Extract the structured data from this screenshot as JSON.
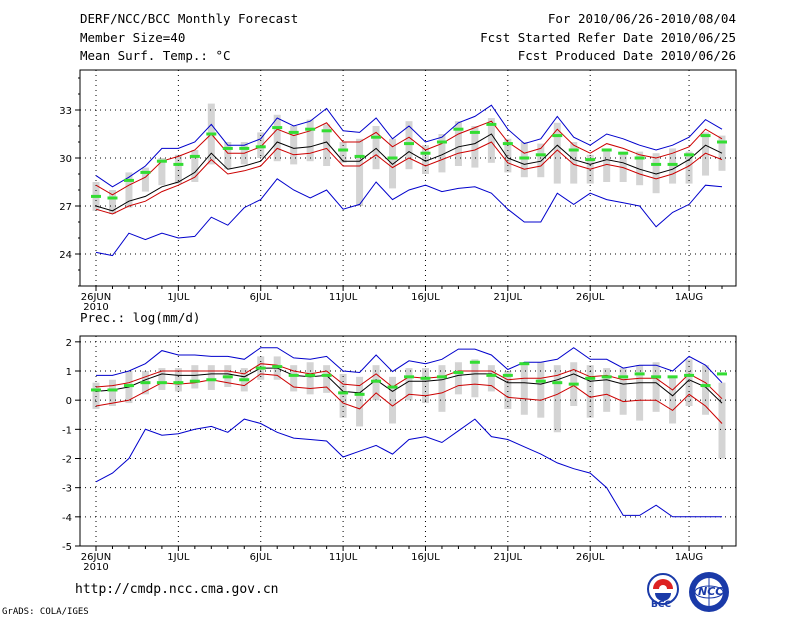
{
  "header": {
    "title": "DERF/NCC/BCC Monthly Forecast",
    "member": "Member Size=40",
    "variable": "Mean Surf. Temp.: °C",
    "period": "For 2010/06/26-2010/08/04",
    "started": "Fcst Started Refer Date 2010/06/25",
    "produced": "Fcst Produced Date 2010/06/26"
  },
  "footer": {
    "url": "http://cmdp.ncc.cma.gov.cn",
    "grads": "GrADS: COLA/IGES",
    "logo_bcc": "BCC",
    "logo_ncc": "NCC"
  },
  "colors": {
    "gray_bar": "#d4d4d4",
    "green": "#33dd33",
    "blue": "#0000cc",
    "red": "#cc0000",
    "black": "#000000"
  },
  "chart_data": [
    {
      "type": "line",
      "title": "Mean Surf. Temp.: °C",
      "x_tick_labels": [
        "26JUN",
        "1JUL",
        "6JUL",
        "11JUL",
        "16JUL",
        "21JUL",
        "26JUL",
        "1AUG"
      ],
      "x_tick_days": [
        0,
        5,
        10,
        15,
        20,
        25,
        30,
        36
      ],
      "year_label": "2010",
      "ylim": [
        22,
        35.5
      ],
      "yticks": [
        24,
        27,
        30,
        33
      ],
      "series": [
        {
          "name": "max",
          "color": "blue",
          "values": [
            28.9,
            28.2,
            28.8,
            29.5,
            30.6,
            30.6,
            31.0,
            32.1,
            30.8,
            30.8,
            31.2,
            32.5,
            32.0,
            32.3,
            33.1,
            31.7,
            31.6,
            32.5,
            31.2,
            32.0,
            31.0,
            31.3,
            32.2,
            32.6,
            33.3,
            31.8,
            30.9,
            31.2,
            32.6,
            31.3,
            30.8,
            31.5,
            31.2,
            30.8,
            30.5,
            30.8,
            31.3,
            32.4,
            31.8
          ]
        },
        {
          "name": "upper",
          "color": "red",
          "values": [
            28.3,
            27.7,
            28.3,
            28.8,
            29.8,
            30.1,
            30.5,
            31.5,
            30.3,
            30.3,
            30.7,
            31.8,
            31.4,
            31.7,
            32.2,
            31.0,
            31.0,
            31.6,
            30.7,
            31.3,
            30.5,
            30.9,
            31.5,
            31.9,
            32.3,
            31.0,
            30.3,
            30.6,
            31.8,
            30.8,
            30.3,
            30.9,
            30.6,
            30.2,
            30.0,
            30.3,
            30.7,
            31.8,
            31.2
          ]
        },
        {
          "name": "mean",
          "color": "black",
          "values": [
            27.0,
            26.7,
            27.3,
            27.6,
            28.2,
            28.5,
            29.1,
            30.3,
            29.3,
            29.5,
            29.8,
            31.0,
            30.6,
            30.7,
            31.0,
            29.8,
            29.8,
            30.6,
            29.6,
            30.4,
            29.8,
            30.2,
            30.7,
            30.9,
            31.5,
            30.0,
            29.6,
            29.8,
            30.8,
            29.9,
            29.6,
            29.9,
            29.7,
            29.3,
            29.0,
            29.3,
            29.9,
            30.8,
            30.3
          ]
        },
        {
          "name": "lower",
          "color": "red",
          "values": [
            26.8,
            26.5,
            27.0,
            27.3,
            27.9,
            28.3,
            28.8,
            29.9,
            29.0,
            29.2,
            29.5,
            30.6,
            30.2,
            30.3,
            30.6,
            29.5,
            29.5,
            30.2,
            29.4,
            30.0,
            29.5,
            29.9,
            30.3,
            30.5,
            31.0,
            29.7,
            29.3,
            29.5,
            30.5,
            29.6,
            29.3,
            29.6,
            29.4,
            29.0,
            28.7,
            29.0,
            29.5,
            30.3,
            29.9
          ]
        },
        {
          "name": "min",
          "color": "blue",
          "values": [
            24.1,
            23.9,
            25.3,
            24.9,
            25.3,
            25.0,
            25.1,
            26.3,
            25.8,
            26.9,
            27.4,
            28.7,
            28.0,
            27.5,
            28.0,
            26.8,
            27.1,
            28.5,
            27.4,
            28.0,
            28.3,
            27.9,
            28.1,
            28.2,
            27.8,
            26.8,
            26.0,
            26.0,
            27.8,
            27.1,
            27.8,
            27.4,
            27.2,
            27.0,
            25.7,
            26.6,
            27.1,
            28.3,
            28.2
          ]
        },
        {
          "name": "median",
          "color": "green",
          "values": [
            27.6,
            27.5,
            28.6,
            29.1,
            29.8,
            29.6,
            30.1,
            31.5,
            30.6,
            30.6,
            30.7,
            31.9,
            31.6,
            31.8,
            31.7,
            30.5,
            30.1,
            31.3,
            30.0,
            30.9,
            30.3,
            31.0,
            31.8,
            31.6,
            32.1,
            30.9,
            30.0,
            30.2,
            31.4,
            30.5,
            29.9,
            30.5,
            30.3,
            30.0,
            29.6,
            29.6,
            30.2,
            31.4,
            31.0
          ]
        },
        {
          "name": "spread_low",
          "color": "gray",
          "values": [
            26.7,
            26.5,
            26.9,
            27.9,
            28.3,
            28.4,
            28.5,
            29.6,
            29.3,
            29.6,
            30.0,
            29.8,
            29.6,
            29.8,
            29.5,
            29.7,
            27.0,
            29.3,
            28.1,
            29.3,
            29.0,
            29.1,
            29.5,
            29.4,
            29.7,
            29.1,
            28.8,
            28.8,
            28.4,
            28.4,
            28.4,
            28.5,
            28.5,
            28.3,
            27.8,
            28.4,
            28.4,
            28.9,
            29.2
          ]
        },
        {
          "name": "spread_high",
          "color": "gray",
          "values": [
            28.5,
            28.0,
            29.1,
            29.4,
            30.0,
            30.2,
            30.5,
            33.4,
            31.0,
            31.0,
            31.6,
            32.7,
            32.0,
            32.4,
            32.1,
            31.0,
            31.2,
            32.0,
            31.2,
            32.3,
            30.8,
            31.5,
            32.3,
            32.0,
            32.5,
            31.2,
            31.0,
            30.9,
            32.2,
            31.0,
            30.2,
            30.6,
            30.4,
            30.4,
            30.3,
            30.6,
            30.4,
            31.6,
            31.4
          ]
        }
      ]
    },
    {
      "type": "line",
      "title": "Prec.: log(mm/d)",
      "x_tick_labels": [
        "26JUN",
        "1JUL",
        "6JUL",
        "11JUL",
        "16JUL",
        "21JUL",
        "26JUL",
        "1AUG"
      ],
      "x_tick_days": [
        0,
        5,
        10,
        15,
        20,
        25,
        30,
        36
      ],
      "year_label": "2010",
      "ylim": [
        -5,
        2.2
      ],
      "yticks": [
        -5,
        -4,
        -3,
        -2,
        -1,
        0,
        1,
        2
      ],
      "series": [
        {
          "name": "max",
          "color": "blue",
          "values": [
            0.85,
            0.85,
            1.0,
            1.25,
            1.7,
            1.55,
            1.55,
            1.5,
            1.5,
            1.4,
            1.8,
            1.8,
            1.45,
            1.4,
            1.5,
            1.0,
            0.95,
            1.55,
            0.98,
            1.35,
            1.25,
            1.4,
            1.75,
            1.75,
            1.55,
            1.05,
            1.3,
            1.3,
            1.4,
            1.8,
            1.4,
            1.4,
            1.1,
            1.2,
            1.2,
            1.0,
            1.5,
            1.2,
            0.6
          ]
        },
        {
          "name": "upper",
          "color": "red",
          "values": [
            0.45,
            0.5,
            0.6,
            0.8,
            1.0,
            1.0,
            1.0,
            1.0,
            1.0,
            0.9,
            1.25,
            1.2,
            1.0,
            0.9,
            1.0,
            0.55,
            0.5,
            0.9,
            0.45,
            0.8,
            0.75,
            0.8,
            1.0,
            1.0,
            1.0,
            0.7,
            0.75,
            0.75,
            0.85,
            1.05,
            0.8,
            0.85,
            0.7,
            0.75,
            0.75,
            0.35,
            0.9,
            0.6,
            0.05
          ]
        },
        {
          "name": "mean",
          "color": "black",
          "values": [
            0.3,
            0.35,
            0.45,
            0.7,
            0.9,
            0.85,
            0.85,
            0.9,
            0.9,
            0.8,
            1.1,
            1.1,
            0.85,
            0.8,
            0.85,
            0.3,
            0.25,
            0.7,
            0.3,
            0.65,
            0.65,
            0.7,
            0.85,
            0.9,
            0.9,
            0.6,
            0.6,
            0.55,
            0.7,
            0.9,
            0.65,
            0.7,
            0.55,
            0.6,
            0.6,
            0.15,
            0.7,
            0.45,
            -0.1
          ]
        },
        {
          "name": "lower",
          "color": "red",
          "values": [
            -0.2,
            -0.1,
            0.0,
            0.3,
            0.6,
            0.55,
            0.6,
            0.7,
            0.6,
            0.5,
            0.9,
            0.85,
            0.45,
            0.4,
            0.45,
            -0.1,
            -0.3,
            0.25,
            -0.2,
            0.2,
            0.15,
            0.25,
            0.5,
            0.55,
            0.5,
            0.1,
            0.05,
            0.0,
            0.2,
            0.5,
            0.1,
            0.2,
            -0.05,
            0.0,
            0.0,
            -0.35,
            0.2,
            -0.2,
            -0.8
          ]
        },
        {
          "name": "min",
          "color": "blue",
          "values": [
            -2.8,
            -2.5,
            -2.0,
            -1.0,
            -1.2,
            -1.15,
            -1.0,
            -0.9,
            -1.1,
            -0.65,
            -0.8,
            -1.1,
            -1.3,
            -1.35,
            -1.4,
            -1.95,
            -1.75,
            -1.55,
            -1.85,
            -1.35,
            -1.25,
            -1.45,
            -1.05,
            -0.65,
            -1.25,
            -1.35,
            -1.6,
            -1.85,
            -2.15,
            -2.35,
            -2.5,
            -3.0,
            -3.95,
            -3.95,
            -3.6,
            -4.0,
            -4.0,
            -4.0,
            -4.0
          ]
        },
        {
          "name": "median",
          "color": "green",
          "values": [
            0.35,
            0.35,
            0.5,
            0.6,
            0.6,
            0.6,
            0.65,
            0.7,
            0.8,
            0.7,
            1.1,
            1.15,
            0.85,
            0.85,
            0.85,
            0.25,
            0.2,
            0.65,
            0.45,
            0.8,
            0.75,
            0.8,
            0.95,
            1.3,
            0.85,
            0.85,
            1.25,
            0.65,
            0.6,
            0.55,
            0.75,
            0.8,
            0.8,
            0.9,
            0.8,
            0.8,
            0.85,
            0.5,
            0.9
          ]
        },
        {
          "name": "spread_low",
          "color": "gray",
          "values": [
            -0.3,
            -0.2,
            -0.1,
            0.2,
            0.35,
            0.3,
            0.4,
            0.35,
            0.45,
            0.3,
            0.7,
            0.7,
            0.3,
            0.2,
            0.25,
            -0.6,
            -0.9,
            0.0,
            -0.8,
            0.0,
            -0.1,
            -0.4,
            0.2,
            0.1,
            0.3,
            -0.3,
            -0.5,
            -0.6,
            -1.1,
            -0.2,
            -0.6,
            -0.4,
            -0.5,
            -0.7,
            -0.4,
            -0.8,
            -0.2,
            -0.5,
            -2.0
          ]
        },
        {
          "name": "spread_high",
          "color": "gray",
          "values": [
            0.6,
            0.7,
            1.0,
            1.0,
            1.1,
            1.1,
            1.2,
            1.2,
            1.2,
            1.1,
            1.5,
            1.5,
            1.2,
            1.3,
            1.2,
            0.9,
            0.8,
            1.2,
            0.8,
            1.1,
            1.1,
            1.2,
            1.3,
            1.4,
            1.2,
            1.0,
            1.2,
            1.3,
            1.2,
            1.3,
            1.2,
            1.1,
            1.1,
            1.2,
            1.3,
            0.8,
            1.4,
            1.2,
            0.6
          ]
        }
      ]
    }
  ]
}
